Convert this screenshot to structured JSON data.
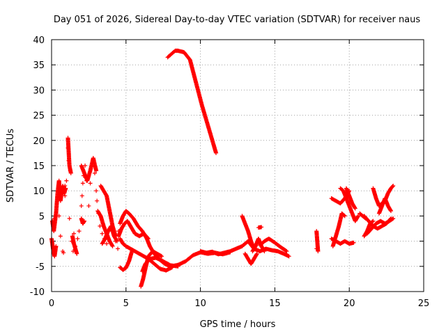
{
  "chart_data": {
    "type": "scatter",
    "title": "Day 051 of 2026, Sidereal Day-to-day VTEC variation (SDTVAR) for receiver naus",
    "xlabel": "GPS time / hours",
    "ylabel": "SDTVAR / TECUs",
    "xlim": [
      0,
      25
    ],
    "ylim": [
      -10,
      40
    ],
    "xticks": [
      0,
      5,
      10,
      15,
      20,
      25
    ],
    "yticks": [
      -10,
      -5,
      0,
      5,
      10,
      15,
      20,
      25,
      30,
      35,
      40
    ],
    "grid": true,
    "marker": "+",
    "color": "#ff0000",
    "series": [
      {
        "name": "naus",
        "segments": [
          {
            "x": [
              7.8,
              8.3,
              8.5,
              8.9,
              9.3,
              9.7,
              10.1,
              10.5,
              10.8,
              11.05
            ],
            "y": [
              36.5,
              37.8,
              37.8,
              37.5,
              36.0,
              31.5,
              27.0,
              23.0,
              20.0,
              17.5
            ]
          },
          {
            "x": [
              4.6,
              4.8,
              5.0,
              5.2,
              5.5,
              5.8,
              6.1,
              6.4,
              6.6,
              6.9,
              7.2,
              7.6,
              8.0,
              8.5,
              9.0,
              9.5,
              10.0,
              10.5,
              11.0,
              11.5,
              12.0
            ],
            "y": [
              3.5,
              5.0,
              6.0,
              5.5,
              4.5,
              3.0,
              2.0,
              0.5,
              -1.0,
              -2.5,
              -3.5,
              -4.5,
              -5.0,
              -4.7,
              -4.0,
              -2.8,
              -2.2,
              -2.5,
              -2.3,
              -2.6,
              -2.2
            ]
          },
          {
            "x": [
              4.5,
              4.7,
              4.9,
              5.1,
              5.3,
              5.6,
              5.9,
              6.2,
              6.5
            ],
            "y": [
              1.0,
              2.5,
              3.5,
              4.0,
              3.0,
              1.5,
              1.0,
              1.5,
              0.5
            ]
          },
          {
            "x": [
              4.6,
              4.8,
              5.0,
              5.2,
              5.4
            ],
            "y": [
              -5.2,
              -5.7,
              -5.3,
              -4.0,
              -2.0
            ]
          },
          {
            "x": [
              4.6,
              4.8,
              5.0,
              5.3,
              5.6,
              5.9,
              6.2,
              6.5,
              6.9,
              7.3,
              7.7,
              8.1
            ],
            "y": [
              0.5,
              -0.5,
              -1.0,
              -1.5,
              -2.0,
              -2.5,
              -3.0,
              -3.5,
              -4.5,
              -5.5,
              -5.8,
              -5.2
            ]
          },
          {
            "x": [
              6.0,
              6.15,
              6.3,
              6.5,
              6.8,
              7.1,
              7.4
            ],
            "y": [
              -9.0,
              -7.5,
              -5.5,
              -3.0,
              -2.0,
              -2.5,
              -3.0
            ]
          },
          {
            "x": [
              6.1,
              6.3,
              6.6,
              7.0,
              7.5,
              8.0,
              8.5
            ],
            "y": [
              -6.0,
              -4.5,
              -3.5,
              -3.3,
              -4.0,
              -4.8,
              -5.0
            ]
          },
          {
            "x": [
              10.0,
              10.4,
              10.8,
              11.2,
              11.6,
              12.0,
              12.4,
              12.8,
              13.2,
              13.6,
              14.0,
              14.4,
              14.8,
              15.2,
              15.6,
              15.95
            ],
            "y": [
              -2.0,
              -2.3,
              -2.1,
              -2.6,
              -2.3,
              -2.0,
              -1.5,
              -1.0,
              0.0,
              -1.5,
              -2.0,
              -1.5,
              -1.8,
              -2.0,
              -2.5,
              -3.0
            ]
          },
          {
            "x": [
              12.8,
              13.0,
              13.2,
              13.4,
              13.6
            ],
            "y": [
              5.0,
              3.5,
              2.0,
              0.0,
              -1.5
            ]
          },
          {
            "x": [
              13.0,
              13.2,
              13.4,
              13.6,
              13.8
            ],
            "y": [
              -2.5,
              -3.5,
              -4.5,
              -3.5,
              -2.5
            ]
          },
          {
            "x": [
              13.5,
              13.7,
              13.9,
              14.1,
              14.3
            ],
            "y": [
              -2.0,
              -1.0,
              0.5,
              -1.0,
              -2.0
            ]
          },
          {
            "x": [
              14.0,
              14.3,
              14.6,
              15.0,
              15.4,
              15.8
            ],
            "y": [
              -0.8,
              0.0,
              0.5,
              -0.3,
              -1.2,
              -2.0
            ]
          },
          {
            "x": [
              13.9,
              14.1
            ],
            "y": [
              2.7,
              2.8
            ]
          },
          {
            "x": [
              0.05,
              0.15,
              0.3,
              0.4,
              0.5,
              0.6,
              0.75,
              0.85,
              0.95
            ],
            "y": [
              4.0,
              2.0,
              5.5,
              9.5,
              12.0,
              8.0,
              11.0,
              9.5,
              10.5
            ]
          },
          {
            "x": [
              0.0,
              0.1,
              0.2,
              0.3
            ],
            "y": [
              0.5,
              -1.5,
              -3.0,
              -1.0
            ]
          },
          {
            "x": [
              1.1,
              1.2,
              1.3
            ],
            "y": [
              20.5,
              15.0,
              13.5
            ]
          },
          {
            "x": [
              1.4,
              1.5,
              1.6,
              1.7
            ],
            "y": [
              1.0,
              -0.5,
              -1.5,
              -2.5
            ]
          },
          {
            "x": [
              2.0,
              2.2,
              2.4,
              2.6,
              2.8,
              3.0
            ],
            "y": [
              15.0,
              13.5,
              12.0,
              14.0,
              16.5,
              14.0
            ]
          },
          {
            "x": [
              2.0,
              2.1,
              2.2
            ],
            "y": [
              4.5,
              3.5,
              4.0
            ]
          },
          {
            "x": [
              3.3,
              3.5,
              3.7,
              3.9,
              4.1,
              4.3
            ],
            "y": [
              11.0,
              10.0,
              9.0,
              6.0,
              3.0,
              1.0
            ]
          },
          {
            "x": [
              3.4,
              3.6,
              3.8,
              4.0,
              4.2,
              4.4
            ],
            "y": [
              -0.5,
              0.5,
              2.0,
              3.0,
              1.0,
              0.0
            ]
          },
          {
            "x": [
              3.1,
              3.3,
              3.5,
              3.7,
              3.9,
              4.1
            ],
            "y": [
              6.0,
              5.0,
              3.0,
              1.5,
              0.0,
              -1.0
            ]
          },
          {
            "x": [
              17.8,
              17.85,
              17.9
            ],
            "y": [
              2.0,
              0.0,
              -2.0
            ]
          },
          {
            "x": [
              18.8,
              19.1,
              19.4,
              19.7,
              20.0
            ],
            "y": [
              8.5,
              8.0,
              7.5,
              8.5,
              10.0
            ]
          },
          {
            "x": [
              19.4,
              19.6,
              19.8,
              20.0,
              20.2,
              20.4,
              20.6
            ],
            "y": [
              10.5,
              10.0,
              8.5,
              7.0,
              5.5,
              4.0,
              5.0
            ]
          },
          {
            "x": [
              19.8,
              20.0,
              20.2,
              20.4
            ],
            "y": [
              10.5,
              9.0,
              7.5,
              6.5
            ]
          },
          {
            "x": [
              18.8,
              19.1,
              19.4,
              19.7,
              20.0,
              20.3
            ],
            "y": [
              0.5,
              0.0,
              -0.5,
              0.0,
              -0.5,
              -0.3
            ]
          },
          {
            "x": [
              18.9,
              19.1,
              19.3,
              19.5,
              19.7
            ],
            "y": [
              -1.0,
              1.0,
              3.0,
              5.5,
              5.0
            ]
          },
          {
            "x": [
              21.0,
              21.3,
              21.6,
              21.9,
              22.2,
              22.5,
              22.8
            ],
            "y": [
              5.0,
              4.0,
              3.0,
              2.5,
              3.0,
              3.5,
              4.5
            ]
          },
          {
            "x": [
              21.2,
              21.5,
              21.8,
              22.1,
              22.4,
              22.7,
              22.95
            ],
            "y": [
              1.5,
              2.5,
              3.5,
              4.0,
              3.5,
              4.0,
              4.5
            ]
          },
          {
            "x": [
              21.6,
              21.8,
              22.0,
              22.2,
              22.4,
              22.6,
              22.8,
              22.95
            ],
            "y": [
              10.5,
              8.5,
              7.0,
              7.5,
              8.0,
              9.5,
              10.5,
              11.0
            ]
          },
          {
            "x": [
              22.0,
              22.2,
              22.4,
              22.6,
              22.8
            ],
            "y": [
              5.5,
              7.0,
              8.5,
              7.0,
              6.0
            ]
          },
          {
            "x": [
              21.0,
              21.2,
              21.4,
              21.6
            ],
            "y": [
              1.0,
              2.0,
              3.5,
              4.0
            ]
          },
          {
            "x": [
              20.7,
              20.9,
              21.1
            ],
            "y": [
              5.5,
              5.0,
              4.5
            ]
          }
        ]
      }
    ],
    "scatter_points": {
      "x": [
        0.2,
        0.35,
        0.5,
        0.6,
        0.75,
        0.9,
        1.0,
        1.1,
        1.15,
        1.2,
        1.35,
        1.45,
        1.5,
        1.6,
        1.75,
        1.85,
        2.0,
        2.05,
        2.1,
        2.15,
        2.25,
        2.35,
        2.5,
        2.6,
        2.75,
        2.9,
        3.0,
        3.05,
        3.15,
        3.25,
        3.4,
        3.55,
        3.7,
        3.85,
        4.0,
        4.15,
        4.3,
        4.45,
        4.5,
        0.8,
        0.9,
        1.25,
        17.8,
        20.2
      ],
      "y": [
        4.5,
        7.5,
        5.0,
        1.0,
        -2.0,
        9.0,
        12.0,
        18.5,
        16.0,
        4.5,
        0.0,
        -2.0,
        1.5,
        -1.0,
        0.5,
        2.0,
        7.0,
        9.0,
        11.5,
        13.0,
        15.0,
        12.0,
        7.0,
        11.5,
        15.5,
        13.5,
        10.0,
        8.0,
        5.5,
        3.0,
        1.5,
        0.5,
        -0.5,
        2.0,
        4.5,
        2.5,
        0.0,
        -1.5,
        2.0,
        -2.3,
        11.0,
        14.0,
        -1.5,
        -0.3
      ]
    }
  }
}
